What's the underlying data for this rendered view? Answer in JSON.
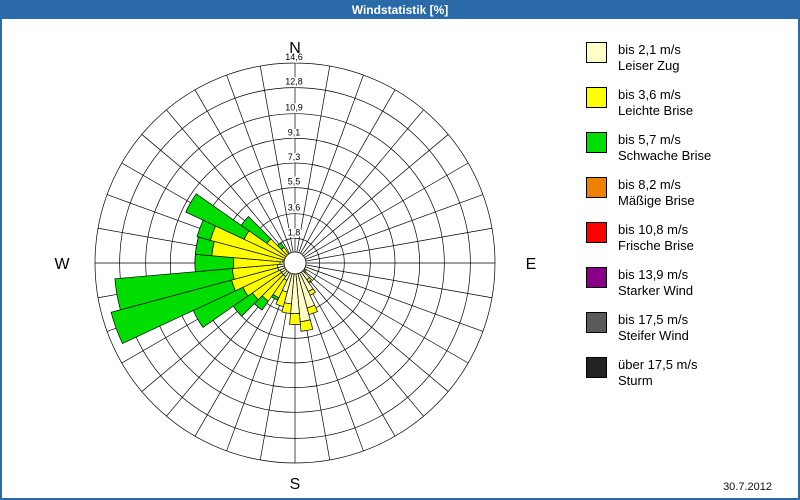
{
  "window": {
    "title": "Windstatistik [%]"
  },
  "footer": {
    "date": "30.7.2012"
  },
  "chart_data": {
    "type": "windrose",
    "title": "Windstatistik [%]",
    "units": "%",
    "max_value": 14.6,
    "sector_width_deg": 10,
    "ring_values": [
      1.8,
      3.6,
      5.5,
      7.3,
      9.1,
      10.9,
      12.8,
      14.6
    ],
    "ring_labels": [
      "1,8",
      "3,6",
      "5,5",
      "7,3",
      "9,1",
      "10,9",
      "12,8",
      "14,6"
    ],
    "compass": {
      "n": "N",
      "e": "E",
      "s": "S",
      "w": "W"
    },
    "legend_position": "right",
    "grid": true,
    "speed_classes": [
      {
        "label": "bis 2,1 m/s",
        "name": "Leiser Zug",
        "color": "#FFFFC8"
      },
      {
        "label": "bis 3,6 m/s",
        "name": "Leichte Brise",
        "color": "#FFFF00"
      },
      {
        "label": "bis 5,7 m/s",
        "name": "Schwache Brise",
        "color": "#00DD00"
      },
      {
        "label": "bis 8,2 m/s",
        "name": "Mäßige Brise",
        "color": "#F08000"
      },
      {
        "label": "bis 10,8 m/s",
        "name": "Frische Brise",
        "color": "#FF0000"
      },
      {
        "label": "bis 13,9 m/s",
        "name": "Starker Wind",
        "color": "#880088"
      },
      {
        "label": "bis 17,5 m/s",
        "name": "Steifer Wind",
        "color": "#5a5a5a"
      },
      {
        "label": "über 17,5 m/s",
        "name": "Sturm",
        "color": "#222222"
      }
    ],
    "sectors": [
      {
        "dir": 120,
        "values": [
          0.5,
          0,
          0,
          0,
          0,
          0,
          0,
          0
        ]
      },
      {
        "dir": 130,
        "values": [
          0.9,
          0.1,
          0,
          0,
          0,
          0,
          0,
          0
        ]
      },
      {
        "dir": 140,
        "values": [
          1.5,
          0.2,
          0,
          0,
          0,
          0,
          0,
          0
        ]
      },
      {
        "dir": 150,
        "values": [
          2.3,
          0.3,
          0,
          0,
          0,
          0,
          0,
          0
        ]
      },
      {
        "dir": 160,
        "values": [
          3.4,
          0.5,
          0,
          0,
          0,
          0,
          0,
          0
        ]
      },
      {
        "dir": 170,
        "values": [
          4.3,
          0.7,
          0,
          0,
          0,
          0,
          0,
          0
        ]
      },
      {
        "dir": 180,
        "values": [
          3.7,
          0.8,
          0,
          0,
          0,
          0,
          0,
          0
        ]
      },
      {
        "dir": 190,
        "values": [
          3.0,
          0.7,
          0,
          0,
          0,
          0,
          0,
          0
        ]
      },
      {
        "dir": 200,
        "values": [
          2.2,
          1.1,
          0,
          0,
          0,
          0,
          0,
          0
        ]
      },
      {
        "dir": 210,
        "values": [
          1.4,
          1.4,
          0.2,
          0,
          0,
          0,
          0,
          0
        ]
      },
      {
        "dir": 220,
        "values": [
          1.2,
          2.2,
          0.8,
          0,
          0,
          0,
          0,
          0
        ]
      },
      {
        "dir": 230,
        "values": [
          1.2,
          2.6,
          1.7,
          0,
          0,
          0,
          0,
          0
        ]
      },
      {
        "dir": 240,
        "values": [
          1.2,
          3.0,
          4.0,
          0,
          0,
          0,
          0,
          0
        ]
      },
      {
        "dir": 250,
        "values": [
          1.3,
          3.5,
          9.1,
          0,
          0,
          0,
          0,
          0
        ]
      },
      {
        "dir": 260,
        "values": [
          1.3,
          3.3,
          8.6,
          0,
          0,
          0,
          0,
          0
        ]
      },
      {
        "dir": 270,
        "values": [
          1.1,
          3.4,
          2.8,
          0,
          0,
          0,
          0,
          0
        ]
      },
      {
        "dir": 280,
        "values": [
          0.9,
          5.2,
          1.2,
          0,
          0,
          0,
          0,
          0
        ]
      },
      {
        "dir": 290,
        "values": [
          0.8,
          5.6,
          1.0,
          0,
          0,
          0,
          0,
          0
        ]
      },
      {
        "dir": 300,
        "values": [
          0.7,
          3.4,
          4.7,
          0,
          0,
          0,
          0,
          0
        ]
      },
      {
        "dir": 310,
        "values": [
          0.5,
          2.0,
          2.3,
          0,
          0,
          0,
          0,
          0
        ]
      },
      {
        "dir": 320,
        "values": [
          0.4,
          1.0,
          0.4,
          0,
          0,
          0,
          0,
          0
        ]
      },
      {
        "dir": 330,
        "values": [
          0.3,
          0.4,
          0,
          0,
          0,
          0,
          0,
          0
        ]
      }
    ]
  }
}
